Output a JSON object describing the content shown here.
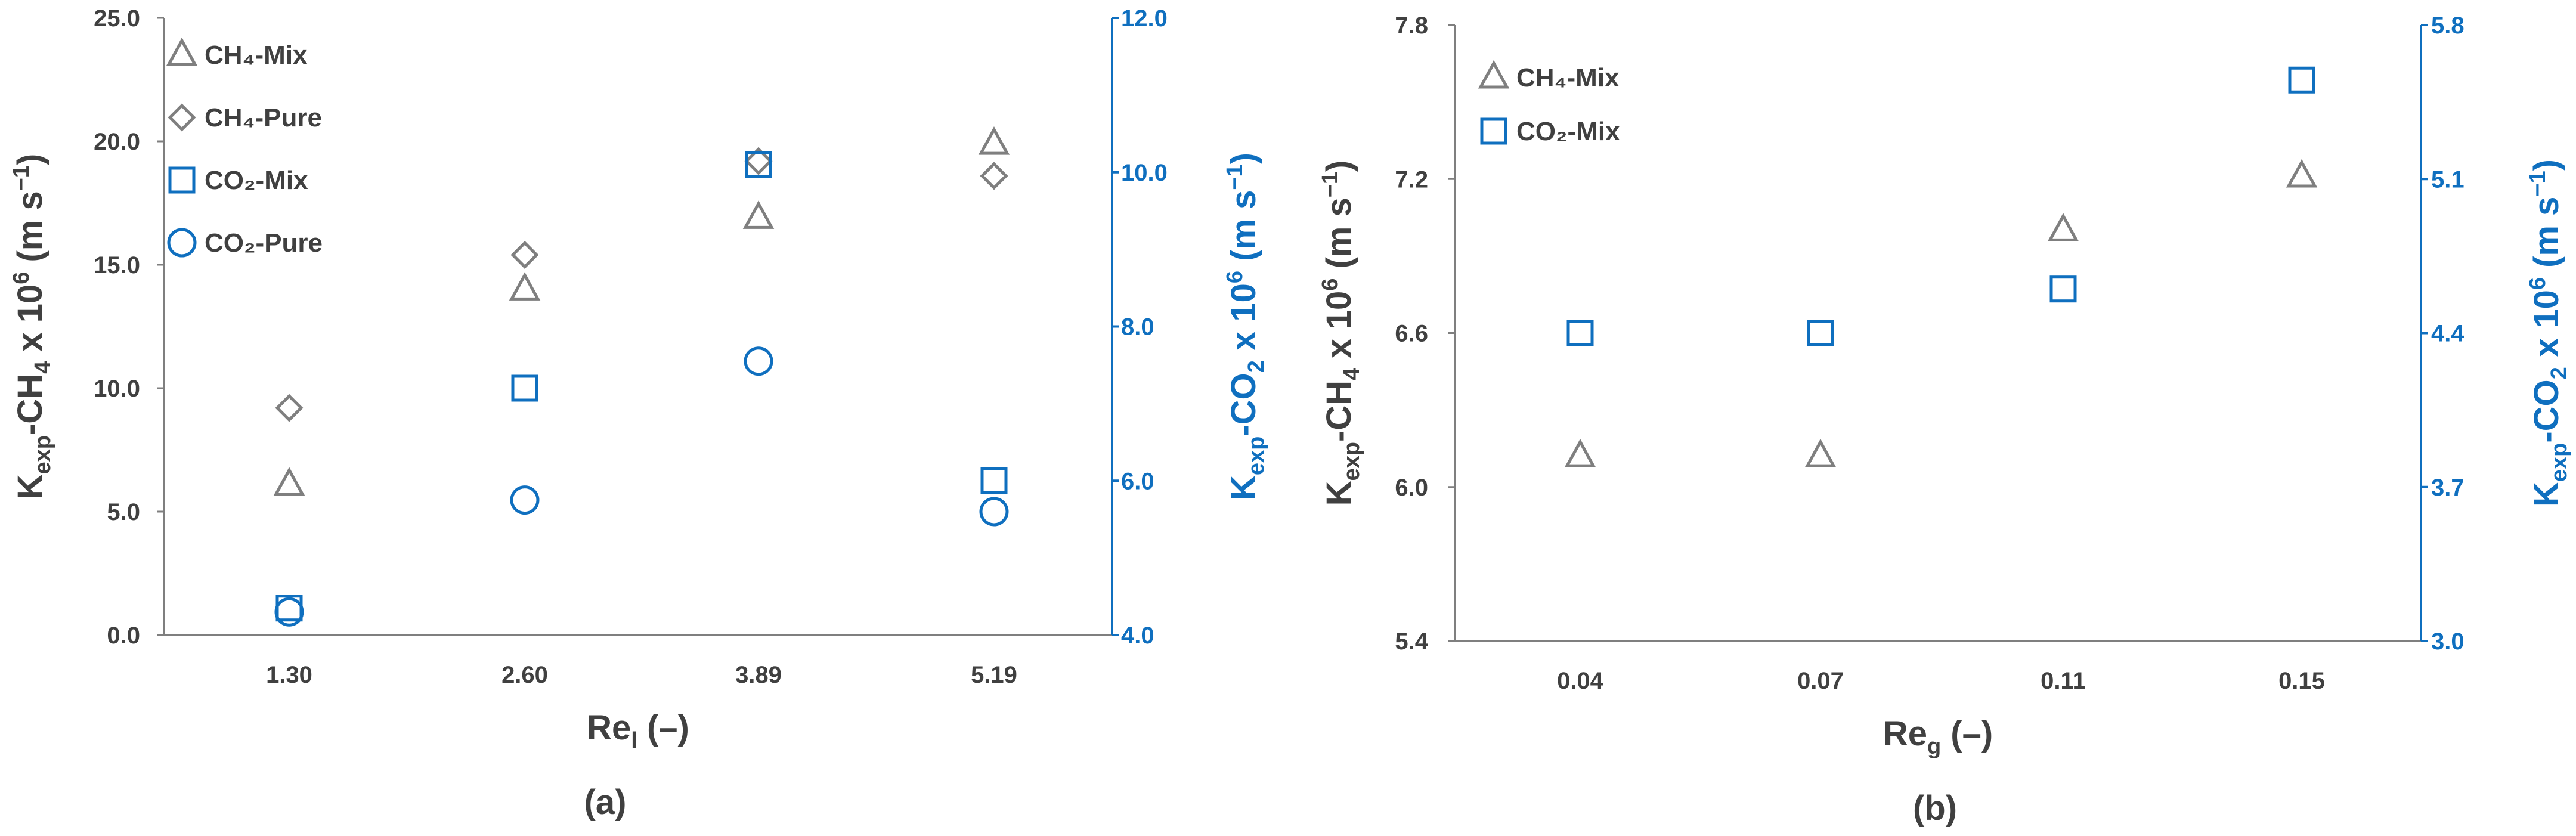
{
  "chart_data": [
    {
      "type": "scatter",
      "caption": "(a)",
      "x_categories": [
        "1.30",
        "2.60",
        "3.89",
        "5.19"
      ],
      "xlabel": "Re",
      "xlabel_sub": "l",
      "xlabel_tail": " (–)",
      "ylabel_left": "K",
      "ylabel_left_sub": "exp",
      "ylabel_left_tail": "-CH",
      "ylabel_left_sub2": "4",
      "ylabel_left_end": " x 10",
      "ylabel_left_sup": "6",
      "ylabel_left_units": " (m s",
      "ylabel_left_units_sup": "−1",
      "ylabel_left_close": ")",
      "ylabel_right": "K",
      "ylabel_right_sub": "exp",
      "ylabel_right_tail": "-CO",
      "ylabel_right_sub2": "2",
      "ylabel_right_end": " x 10",
      "ylabel_right_sup": "6",
      "ylabel_right_units": " (m s",
      "ylabel_right_units_sup": "−1",
      "ylabel_right_close": ")",
      "ylim_left": [
        0,
        25
      ],
      "yticks_left": [
        "0.0",
        "5.0",
        "10.0",
        "15.0",
        "20.0",
        "25.0"
      ],
      "ylim_right": [
        4,
        12
      ],
      "yticks_right": [
        "4.0",
        "6.0",
        "8.0",
        "10.0",
        "12.0"
      ],
      "legend_position": "top-left",
      "series": [
        {
          "name": "CH₄-Mix",
          "axis": "left",
          "marker": "triangle",
          "color": "#7f7f7f",
          "values": [
            6.1,
            14.0,
            16.9,
            19.9
          ]
        },
        {
          "name": "CH₄-Pure",
          "axis": "left",
          "marker": "diamond",
          "color": "#7f7f7f",
          "values": [
            9.2,
            15.4,
            19.2,
            18.6
          ]
        },
        {
          "name": "CO₂-Mix",
          "axis": "right",
          "marker": "square",
          "color": "#0f6fbf",
          "values": [
            4.35,
            7.2,
            10.1,
            6.0
          ]
        },
        {
          "name": "CO₂-Pure",
          "axis": "right",
          "marker": "circle",
          "color": "#0f6fbf",
          "values": [
            4.3,
            5.75,
            7.55,
            5.6
          ]
        }
      ]
    },
    {
      "type": "scatter",
      "caption": "(b)",
      "x_categories": [
        "0.04",
        "0.07",
        "0.11",
        "0.15"
      ],
      "xlabel": "Re",
      "xlabel_sub": "g",
      "xlabel_tail": " (–)",
      "ylabel_left": "K",
      "ylabel_left_sub": "exp",
      "ylabel_left_tail": "-CH",
      "ylabel_left_sub2": "4",
      "ylabel_left_end": " x 10",
      "ylabel_left_sup": "6",
      "ylabel_left_units": " (m s",
      "ylabel_left_units_sup": "−1",
      "ylabel_left_close": ")",
      "ylabel_right": "K",
      "ylabel_right_sub": "exp",
      "ylabel_right_tail": "-CO",
      "ylabel_right_sub2": "2",
      "ylabel_right_end": " x 10",
      "ylabel_right_sup": "6",
      "ylabel_right_units": " (m s",
      "ylabel_right_units_sup": "−1",
      "ylabel_right_close": ")",
      "ylim_left": [
        5.4,
        7.8
      ],
      "yticks_left": [
        "5.4",
        "6.0",
        "6.6",
        "7.2",
        "7.8"
      ],
      "ylim_right": [
        3.0,
        5.8
      ],
      "yticks_right": [
        "3.0",
        "3.7",
        "4.4",
        "5.1",
        "5.8"
      ],
      "legend_position": "top-left",
      "series": [
        {
          "name": "CH₄-Mix",
          "axis": "left",
          "marker": "triangle",
          "color": "#7f7f7f",
          "values": [
            6.12,
            6.12,
            7.0,
            7.21
          ]
        },
        {
          "name": "CO₂-Mix",
          "axis": "right",
          "marker": "square",
          "color": "#0f6fbf",
          "values": [
            4.4,
            4.4,
            4.6,
            5.55
          ]
        }
      ]
    }
  ]
}
